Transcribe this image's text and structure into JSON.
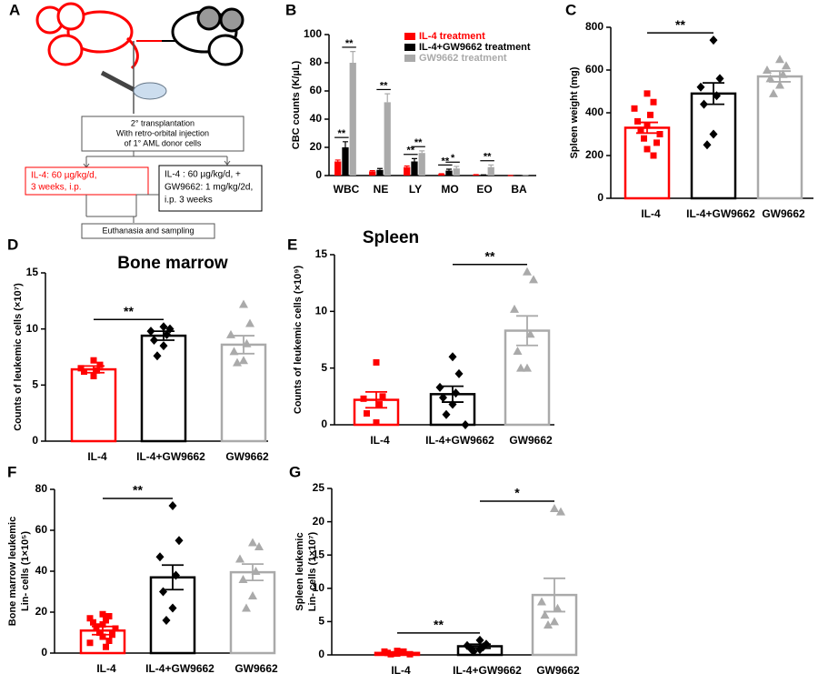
{
  "diagram": {
    "panel": "A",
    "transplant": [
      "2° transplantation",
      "With retro-orbital injection",
      "of 1° AML donor cells"
    ],
    "il4_arm": [
      "IL-4: 60 µg/kg/d,",
      "3 weeks, i.p."
    ],
    "combo_arm": [
      "IL-4 : 60 µg/kg/d, +",
      "GW9662: 1 mg/kg/2d,",
      "i.p. 3 weeks"
    ],
    "endpoint": "Euthanasia and sampling"
  },
  "chart_data": [
    {
      "type": "bar",
      "panel": "B",
      "ylabel": "CBC counts (K/µL)",
      "categories": [
        "WBC",
        "NE",
        "LY",
        "MO",
        "EO",
        "BA"
      ],
      "series": [
        {
          "name": "IL-4 treatment",
          "color": "#ff0000",
          "values": [
            10,
            3,
            6,
            1,
            0.5,
            0
          ],
          "errors": [
            1,
            0.5,
            0.8,
            0.3,
            0.2,
            0
          ]
        },
        {
          "name": "IL-4+GW9662 treatment",
          "color": "#000000",
          "values": [
            20,
            4,
            10,
            3.5,
            0.3,
            0
          ],
          "errors": [
            4,
            1,
            2,
            1,
            0.2,
            0
          ]
        },
        {
          "name": "GW9662 treatment",
          "color": "#aaaaaa",
          "values": [
            80,
            52,
            16,
            5,
            6,
            0.2
          ],
          "errors": [
            8,
            6,
            1.5,
            1.5,
            1.5,
            0.1
          ]
        }
      ],
      "annotations": [
        {
          "text": "**",
          "category": "WBC",
          "series": [
            "IL-4 treatment",
            "IL-4+GW9662 treatment"
          ]
        },
        {
          "text": "**",
          "category": "WBC",
          "series": [
            "IL-4+GW9662 treatment",
            "GW9662 treatment"
          ]
        },
        {
          "text": "**",
          "category": "NE",
          "series": [
            "IL-4+GW9662 treatment",
            "GW9662 treatment"
          ]
        },
        {
          "text": "**",
          "category": "LY",
          "series": [
            "IL-4 treatment",
            "IL-4+GW9662 treatment"
          ]
        },
        {
          "text": "**",
          "category": "LY",
          "series": [
            "IL-4+GW9662 treatment",
            "GW9662 treatment"
          ]
        },
        {
          "text": "**",
          "category": "MO",
          "series": [
            "IL-4 treatment",
            "IL-4+GW9662 treatment"
          ]
        },
        {
          "text": "*",
          "category": "MO",
          "series": [
            "IL-4+GW9662 treatment",
            "GW9662 treatment"
          ]
        },
        {
          "text": "**",
          "category": "EO",
          "series": [
            "IL-4+GW9662 treatment",
            "GW9662 treatment"
          ]
        }
      ],
      "ylim": [
        0,
        100
      ],
      "yticks": [
        0,
        20,
        40,
        60,
        80,
        100
      ]
    },
    {
      "type": "dotplot",
      "panel": "C",
      "ylabel": "Spleen weight (mg)",
      "categories": [
        "IL-4",
        "IL-4+GW9662",
        "GW9662"
      ],
      "colors": [
        "#ff0000",
        "#000000",
        "#aaaaaa"
      ],
      "markers": [
        "square",
        "diamond",
        "triangle"
      ],
      "values": [
        330,
        490,
        570
      ],
      "errors": [
        25,
        50,
        25
      ],
      "points": [
        [
          490,
          450,
          420,
          390,
          360,
          340,
          320,
          300,
          280,
          260,
          230,
          200
        ],
        [
          740,
          560,
          520,
          480,
          440,
          300,
          250
        ],
        [
          650,
          620,
          600,
          580,
          560,
          530,
          490
        ]
      ],
      "annotations": [
        {
          "text": "**",
          "between": [
            "IL-4",
            "IL-4+GW9662"
          ]
        }
      ],
      "ylim": [
        0,
        800
      ],
      "yticks": [
        0,
        200,
        400,
        600,
        800
      ]
    },
    {
      "type": "dotplot",
      "panel": "D",
      "title": "Bone marrow",
      "ylabel": "Counts of leukemic cells (×10⁷)",
      "categories": [
        "IL-4",
        "IL-4+GW9662",
        "GW9662"
      ],
      "colors": [
        "#ff0000",
        "#000000",
        "#aaaaaa"
      ],
      "markers": [
        "square",
        "diamond",
        "triangle"
      ],
      "values": [
        6.4,
        9.4,
        8.6
      ],
      "errors": [
        0.3,
        0.4,
        0.8
      ],
      "points": [
        [
          7.2,
          6.8,
          6.5,
          6.3,
          6.2,
          5.8
        ],
        [
          10.2,
          10.0,
          9.8,
          9.5,
          9.0,
          8.5,
          7.6
        ],
        [
          12.2,
          10.5,
          9.5,
          8.7,
          8.0,
          7.2,
          7.0
        ]
      ],
      "annotations": [
        {
          "text": "**",
          "between": [
            "IL-4",
            "IL-4+GW9662"
          ]
        }
      ],
      "ylim": [
        0,
        15
      ],
      "yticks": [
        0,
        5,
        10,
        15
      ]
    },
    {
      "type": "dotplot",
      "panel": "E",
      "title": "Spleen",
      "ylabel": "Counts of leukemic cells (×10⁹)",
      "categories": [
        "IL-4",
        "IL-4+GW9662",
        "GW9662"
      ],
      "colors": [
        "#ff0000",
        "#000000",
        "#aaaaaa"
      ],
      "markers": [
        "square",
        "diamond",
        "triangle"
      ],
      "values": [
        2.2,
        2.7,
        8.3
      ],
      "errors": [
        0.7,
        0.7,
        1.3
      ],
      "points": [
        [
          5.5,
          2.5,
          2.3,
          1.8,
          1.0,
          0.2
        ],
        [
          6.0,
          4.5,
          3.3,
          2.8,
          2.4,
          1.8,
          0.9,
          0.0
        ],
        [
          13.5,
          12.8,
          10.2,
          8.0,
          6.5,
          5.0,
          5.0
        ]
      ],
      "annotations": [
        {
          "text": "**",
          "between": [
            "IL-4+GW9662",
            "GW9662"
          ]
        }
      ],
      "ylim": [
        0,
        15
      ],
      "yticks": [
        0,
        5,
        10,
        15
      ]
    },
    {
      "type": "dotplot",
      "panel": "F",
      "ylabel": [
        "Bone marrow leukemic",
        "Lin- cells (1×10⁵)"
      ],
      "categories": [
        "IL-4",
        "IL-4+GW9662",
        "GW9662"
      ],
      "colors": [
        "#ff0000",
        "#000000",
        "#aaaaaa"
      ],
      "markers": [
        "square",
        "diamond",
        "triangle"
      ],
      "values": [
        11,
        37,
        39.5
      ],
      "errors": [
        2,
        6,
        4
      ],
      "points": [
        [
          19,
          18,
          17,
          16,
          15,
          14,
          13,
          12,
          10,
          9,
          8,
          6,
          5,
          3
        ],
        [
          72,
          55,
          47,
          38,
          30,
          22,
          16
        ],
        [
          54,
          52,
          46,
          40,
          36,
          28,
          22
        ]
      ],
      "annotations": [
        {
          "text": "**",
          "between": [
            "IL-4",
            "IL-4+GW9662"
          ]
        }
      ],
      "ylim": [
        0,
        80
      ],
      "yticks": [
        0,
        20,
        40,
        60,
        80
      ]
    },
    {
      "type": "dotplot",
      "panel": "G",
      "ylabel": [
        "Spleen leukemic",
        "Lin- cells (1×10⁷)"
      ],
      "categories": [
        "IL-4",
        "IL-4+GW9662",
        "GW9662"
      ],
      "colors": [
        "#ff0000",
        "#000000",
        "#aaaaaa"
      ],
      "markers": [
        "square",
        "diamond",
        "triangle"
      ],
      "values": [
        0.3,
        1.3,
        9.0
      ],
      "errors": [
        0.1,
        0.3,
        2.5
      ],
      "points": [
        [
          0.6,
          0.5,
          0.5,
          0.4,
          0.3,
          0.2,
          0.1,
          0.1
        ],
        [
          2.2,
          1.6,
          1.4,
          1.2,
          1.0,
          0.8,
          0.5
        ],
        [
          22,
          21.5,
          8,
          7,
          6,
          5,
          4.5
        ]
      ],
      "annotations": [
        {
          "text": "**",
          "between": [
            "IL-4",
            "IL-4+GW9662"
          ]
        },
        {
          "text": "*",
          "between": [
            "IL-4+GW9662",
            "GW9662"
          ]
        }
      ],
      "ylim": [
        0,
        25
      ],
      "yticks": [
        0,
        5,
        10,
        15,
        20,
        25
      ]
    }
  ]
}
